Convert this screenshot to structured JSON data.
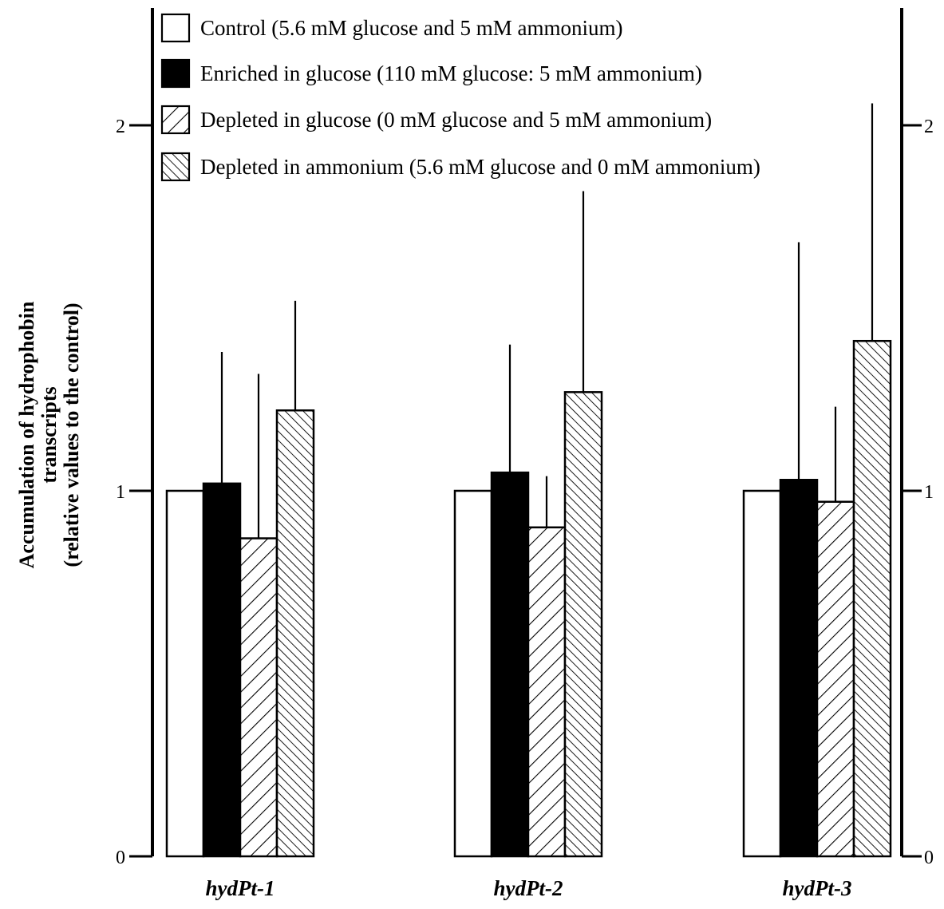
{
  "chart_data": {
    "type": "bar",
    "categories": [
      "hydPt-1",
      "hydPt-2",
      "hydPt-3"
    ],
    "series": [
      {
        "name": "Control (5.6 mM glucose and 5 mM ammonium)",
        "pattern": "empty",
        "values": [
          1.0,
          1.0,
          1.0
        ],
        "error": [
          0,
          0,
          0
        ]
      },
      {
        "name": "Enriched in glucose (110 mM glucose: 5 mM ammonium)",
        "pattern": "solid",
        "values": [
          1.02,
          1.05,
          1.03
        ],
        "error": [
          0.36,
          0.35,
          0.65
        ]
      },
      {
        "name": "Depleted in glucose (0 mM glucose and 5 mM ammonium)",
        "pattern": "hatch-forward",
        "values": [
          0.87,
          0.9,
          0.97
        ],
        "error": [
          0.45,
          0.14,
          0.26
        ]
      },
      {
        "name": "Depleted in ammonium (5.6 mM glucose and 0 mM ammonium)",
        "pattern": "hatch-back",
        "values": [
          1.22,
          1.27,
          1.41
        ],
        "error": [
          0.3,
          0.55,
          0.65
        ]
      }
    ],
    "ylabel_lines": [
      "Accumulation of hydrophobin",
      "transcripts",
      "(relative values to the control)"
    ],
    "ylim": [
      0,
      2.3
    ],
    "yticks": [
      "0",
      "1",
      "2"
    ],
    "ytick_values": [
      0,
      1,
      2
    ],
    "legend_position": "top",
    "grid": false,
    "colors": {
      "bar_fill": "#ffffff",
      "solid_fill": "#000000",
      "stroke": "#000000"
    }
  }
}
